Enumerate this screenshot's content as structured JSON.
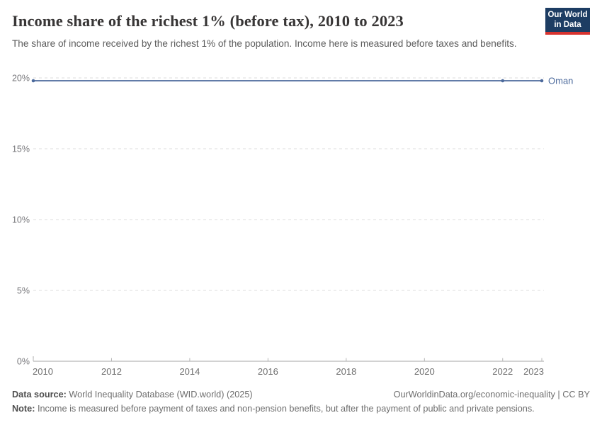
{
  "header": {
    "title": "Income share of the richest 1% (before tax), 2010 to 2023",
    "subtitle": "The share of income received by the richest 1% of the population. Income here is measured before taxes and benefits.",
    "logo": {
      "line1": "Our World",
      "line2": "in Data",
      "bg_color": "#1d3d63",
      "accent_color": "#d7332f"
    }
  },
  "chart_data": {
    "type": "line",
    "title": "Income share of the richest 1% (before tax), 2010 to 2023",
    "x": [
      2010,
      2011,
      2012,
      2013,
      2014,
      2015,
      2016,
      2017,
      2018,
      2019,
      2020,
      2021,
      2022,
      2023
    ],
    "series": [
      {
        "name": "Oman",
        "color": "#4c6a9c",
        "values": [
          19.8,
          19.8,
          19.8,
          19.8,
          19.8,
          19.8,
          19.8,
          19.8,
          19.8,
          19.8,
          19.8,
          19.8,
          19.8,
          19.8
        ]
      }
    ],
    "end_label": "Oman",
    "marker_years": [
      2010,
      2022,
      2023
    ],
    "x_ticks": [
      2010,
      2012,
      2014,
      2016,
      2018,
      2020,
      2022,
      2023
    ],
    "y_ticks": [
      0,
      5,
      10,
      15,
      20
    ],
    "y_tick_suffix": "%",
    "xlim": [
      2010,
      2023
    ],
    "ylim": [
      0,
      20
    ],
    "grid": "horizontal-dashed",
    "legend_position": "end-of-line",
    "colors": {
      "grid": "#dcdcdc",
      "axis": "#a5a5a5",
      "tick": "#b5b5b5",
      "x_label": "#6e6e6e",
      "y_label": "#78787c"
    }
  },
  "footer": {
    "datasource_label": "Data source:",
    "datasource_value": " World Inequality Database (WID.world) (2025)",
    "link": "OurWorldinData.org/economic-inequality | CC BY",
    "note_label": "Note:",
    "note_value": " Income is measured before payment of taxes and non-pension benefits, but after the payment of public and private pensions."
  }
}
